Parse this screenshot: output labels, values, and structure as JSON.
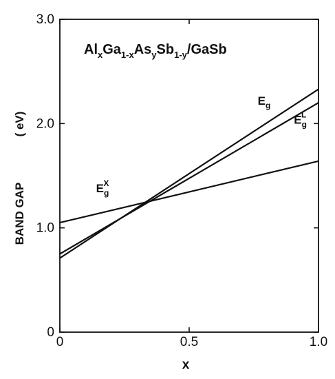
{
  "chart_data": {
    "type": "line",
    "title": {
      "parts": [
        {
          "text": "Al",
          "shift": "none"
        },
        {
          "text": "x",
          "shift": "sub"
        },
        {
          "text": "Ga",
          "shift": "none"
        },
        {
          "text": "1-x",
          "shift": "sub"
        },
        {
          "text": "As",
          "shift": "none"
        },
        {
          "text": "y",
          "shift": "sub"
        },
        {
          "text": "Sb",
          "shift": "none"
        },
        {
          "text": "1-y",
          "shift": "sub"
        },
        {
          "text": "/GaSb",
          "shift": "none"
        }
      ]
    },
    "xlabel": "x",
    "ylabel": "BAND GAP",
    "yunit": "( eV)",
    "xlim": [
      0,
      1.0
    ],
    "ylim": [
      0,
      3.0
    ],
    "x_ticks": [
      {
        "value": 0,
        "label": "0"
      },
      {
        "value": 0.5,
        "label": "0.5"
      },
      {
        "value": 1.0,
        "label": "1.0"
      }
    ],
    "y_ticks": [
      {
        "value": 0,
        "label": "0"
      },
      {
        "value": 1.0,
        "label": "1.0"
      },
      {
        "value": 2.0,
        "label": "2.0"
      },
      {
        "value": 3.0,
        "label": "3.0"
      }
    ],
    "grid": false,
    "series": [
      {
        "name": "E_g^X",
        "label_main": "E",
        "label_sub": "g",
        "label_sup": "X",
        "color": "#111111",
        "x": [
          0,
          1.0
        ],
        "y": [
          1.05,
          1.64
        ]
      },
      {
        "name": "E_g^L",
        "label_main": "E",
        "label_sub": "g",
        "label_sup": "L",
        "color": "#111111",
        "x": [
          0,
          1.0
        ],
        "y": [
          0.75,
          2.2
        ]
      },
      {
        "name": "E_g",
        "label_main": "E",
        "label_sub": "g",
        "label_sup": "",
        "color": "#111111",
        "x": [
          0,
          1.0
        ],
        "y": [
          0.71,
          2.33
        ]
      }
    ]
  }
}
